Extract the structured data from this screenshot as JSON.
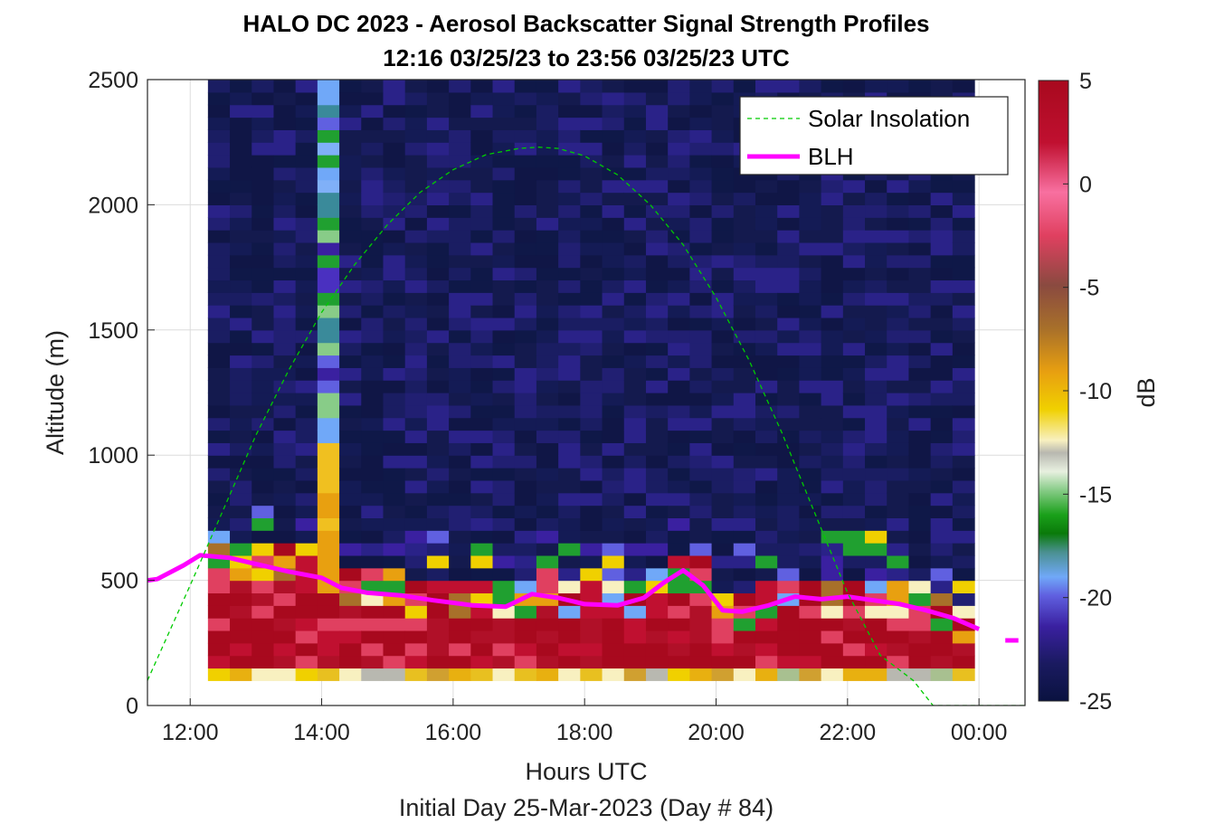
{
  "chart_data": {
    "type": "heatmap",
    "title": "HALO DC 2023 - Aerosol Backscatter Signal Strength Profiles",
    "subtitle": "12:16 03/25/23 to 23:56 03/25/23  UTC",
    "xlabel": "Hours UTC",
    "xlabel2": "Initial Day 25-Mar-2023 (Day # 84)",
    "ylabel": "Altitude (m)",
    "xlim": [
      11.35,
      24.7
    ],
    "ylim": [
      0,
      2500
    ],
    "x_ticks": [
      12,
      14,
      16,
      18,
      20,
      22,
      24
    ],
    "x_tick_labels": [
      "12:00",
      "14:00",
      "16:00",
      "18:00",
      "20:00",
      "22:00",
      "00:00"
    ],
    "y_ticks": [
      0,
      500,
      1000,
      1500,
      2000,
      2500
    ],
    "y_tick_labels": [
      "0",
      "500",
      "1000",
      "1500",
      "2000",
      "2500"
    ],
    "grid": true,
    "colorbar": {
      "label": "dB",
      "range": [
        -25,
        5
      ],
      "ticks": [
        5,
        0,
        -5,
        -10,
        -15,
        -20,
        -25
      ],
      "tick_labels": [
        "5",
        "0",
        "-5",
        "-10",
        "-15",
        "-20",
        "-25"
      ]
    },
    "heatmap_extent": {
      "x_start": 12.27,
      "x_end": 23.93,
      "y_start": 100,
      "y_end": 2500,
      "columns": 35,
      "rows": 48
    },
    "legend": {
      "placement": "top-right",
      "entries": [
        {
          "name": "Solar Insolation",
          "color": "#00cc00",
          "style": "dashed"
        },
        {
          "name": "BLH",
          "color": "#ff00ff",
          "style": "solid"
        }
      ]
    },
    "series": [
      {
        "name": "BLH",
        "x": [
          11.35,
          11.5,
          11.9,
          12.15,
          12.6,
          13.0,
          13.5,
          14.0,
          14.3,
          14.7,
          15.2,
          15.7,
          16.3,
          16.8,
          17.2,
          17.6,
          18.0,
          18.5,
          18.9,
          19.2,
          19.5,
          19.8,
          20.1,
          20.4,
          20.8,
          21.2,
          21.6,
          22.0,
          22.4,
          22.8,
          23.2,
          23.6,
          24.0
        ],
        "y": [
          500,
          505,
          560,
          600,
          590,
          565,
          535,
          510,
          470,
          450,
          440,
          420,
          400,
          395,
          445,
          430,
          405,
          400,
          430,
          490,
          540,
          480,
          380,
          375,
          400,
          435,
          425,
          435,
          420,
          405,
          380,
          350,
          305
        ]
      },
      {
        "name": "BLH",
        "x": [
          24.4,
          24.6
        ],
        "y": [
          260,
          260
        ]
      },
      {
        "name": "Solar Insolation",
        "x": [
          11.35,
          12.0,
          12.5,
          13.0,
          13.5,
          14.0,
          14.5,
          15.0,
          15.5,
          16.0,
          16.5,
          17.0,
          17.3,
          17.6,
          18.0,
          18.5,
          19.0,
          19.5,
          20.0,
          20.5,
          21.0,
          21.5,
          22.0,
          22.5,
          23.0,
          23.3,
          23.6,
          24.0,
          24.7
        ],
        "y": [
          100,
          480,
          780,
          1080,
          1340,
          1570,
          1760,
          1920,
          2050,
          2140,
          2200,
          2225,
          2230,
          2225,
          2195,
          2120,
          2000,
          1840,
          1630,
          1380,
          1090,
          770,
          450,
          200,
          100,
          0,
          0,
          0,
          0
        ]
      }
    ],
    "colors": {
      "background_low": "#0f1a4a",
      "high": "#a8091e"
    }
  }
}
